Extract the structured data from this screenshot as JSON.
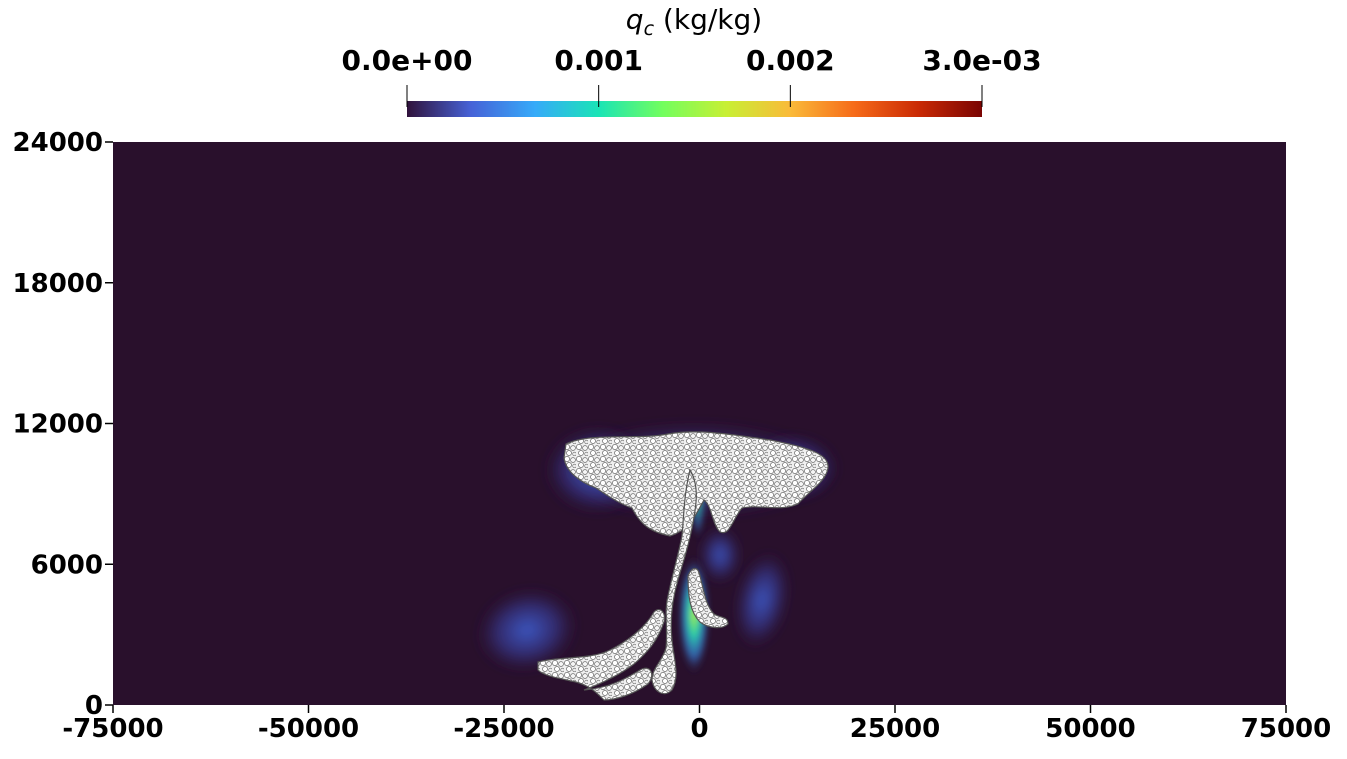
{
  "chart_data": {
    "type": "heatmap",
    "title": "",
    "colorbar": {
      "title_symbol": "q",
      "title_subscript": "c",
      "title_units": " (kg/kg)",
      "ticks": [
        {
          "value": 0.0,
          "label": "0.0e+00"
        },
        {
          "value": 0.001,
          "label": "0.001"
        },
        {
          "value": 0.002,
          "label": "0.002"
        },
        {
          "value": 0.003,
          "label": "3.0e-03"
        }
      ],
      "range": [
        0.0,
        0.003
      ],
      "colormap": "turbo",
      "colormap_stops": [
        "#30123b",
        "#4662d7",
        "#36aaf9",
        "#1ae4b6",
        "#72fe5e",
        "#c8ef34",
        "#faba39",
        "#f66b19",
        "#ca2a04",
        "#7a0403"
      ]
    },
    "xlabel": "",
    "ylabel": "",
    "xlim": [
      -75000,
      75000
    ],
    "ylim": [
      0,
      24000
    ],
    "x_ticks": [
      "-75000",
      "-50000",
      "-25000",
      "0",
      "25000",
      "50000",
      "75000"
    ],
    "y_ticks": [
      "0",
      "6000",
      "12000",
      "18000",
      "24000"
    ],
    "background_color": "#29102c",
    "particle_color": "#e6e6e6",
    "features": [
      {
        "name": "anvil",
        "qc_max": 0.0003,
        "x_range": [
          -18000,
          16000
        ],
        "y_range": [
          7000,
          11400
        ]
      },
      {
        "name": "updraft-core",
        "qc_max": 0.0014,
        "x_center": -1000,
        "y_range": [
          2000,
          5500
        ]
      },
      {
        "name": "left-outflow",
        "qc_max": 0.0003,
        "x_range": [
          -28000,
          -16000
        ],
        "y_range": [
          1200,
          4500
        ]
      },
      {
        "name": "right-outflow",
        "qc_max": 0.0003,
        "x_range": [
          4000,
          11000
        ],
        "y_range": [
          2800,
          6200
        ]
      }
    ]
  }
}
